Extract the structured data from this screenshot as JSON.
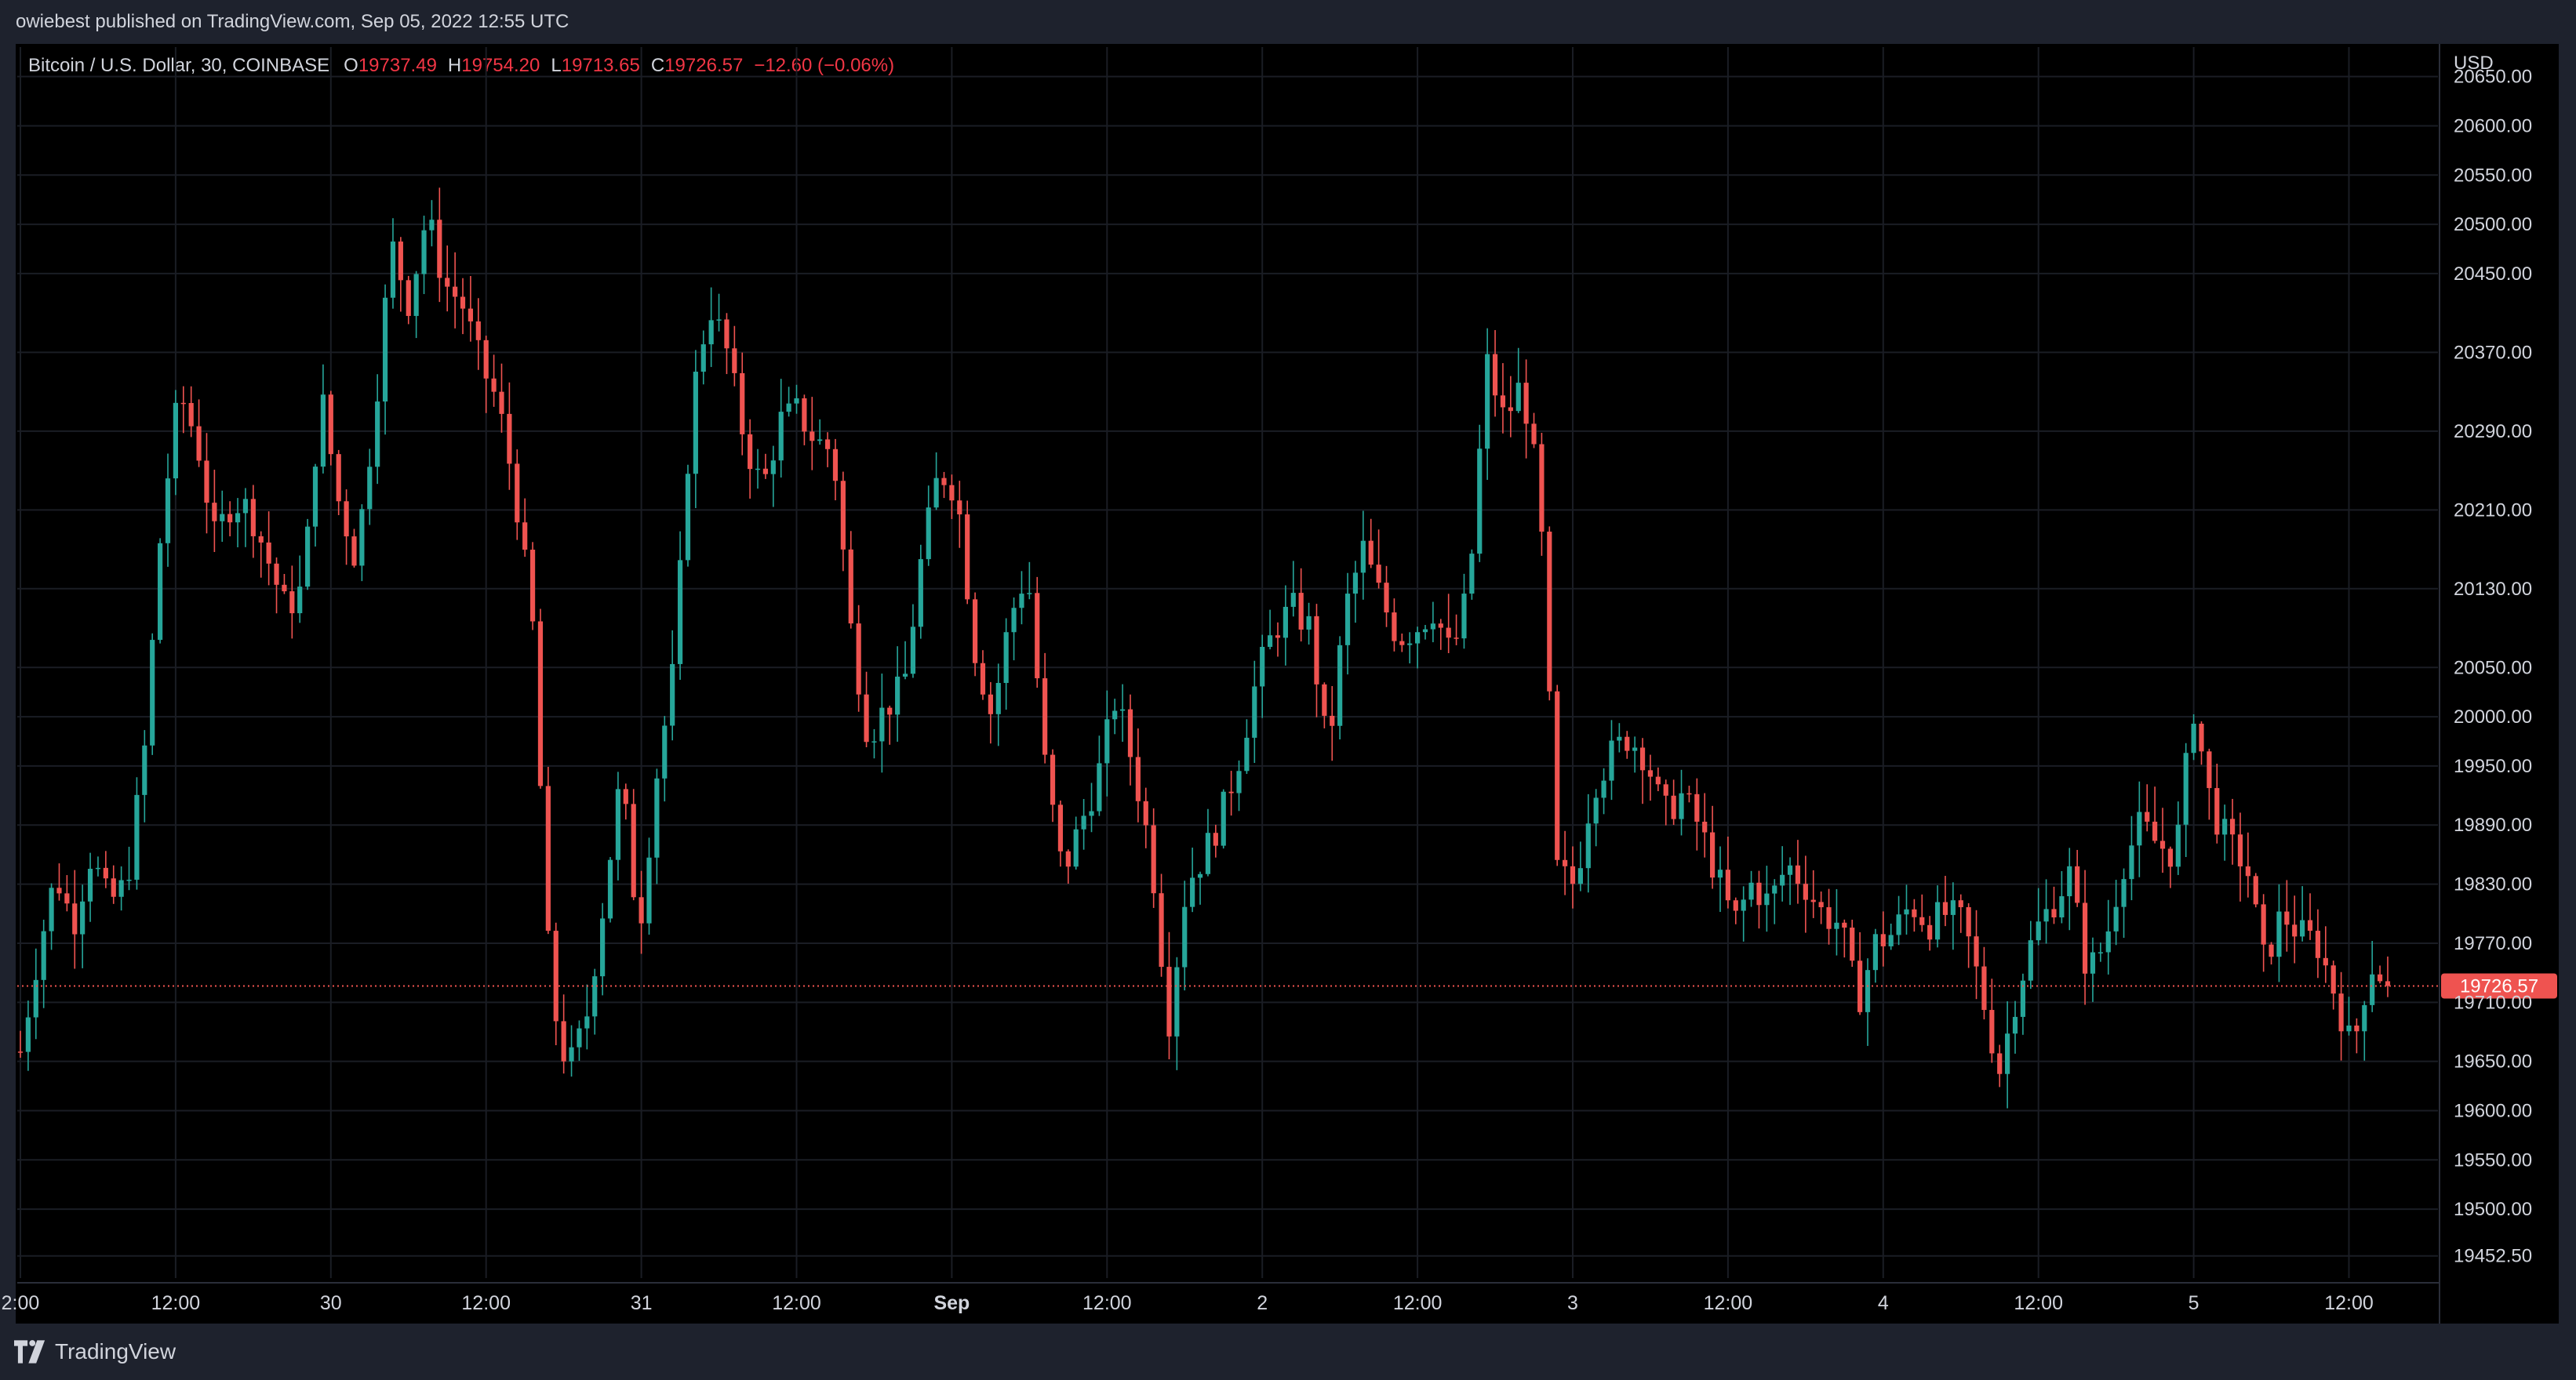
{
  "header": {
    "published": "owiebest published on TradingView.com, Sep 05, 2022 12:55 UTC"
  },
  "legend": {
    "symbol": "Bitcoin / U.S. Dollar, 30, COINBASE",
    "o_label": "O",
    "o_value": "19737.49",
    "h_label": "H",
    "h_value": "19754.20",
    "l_label": "L",
    "l_value": "19713.65",
    "c_label": "C",
    "c_value": "19726.57",
    "change": "−12.60 (−0.06%)"
  },
  "footer": {
    "brand": "TradingView"
  },
  "colors": {
    "up": "#26a69a",
    "down": "#ef5350",
    "background": "#000000",
    "frame": "#1e222d",
    "grid": "#1a1d24",
    "text": "#d1d4dc",
    "price_tag": "#ef5350"
  },
  "chart_data": {
    "type": "candlestick",
    "symbol": "Bitcoin / U.S. Dollar",
    "interval": "30",
    "exchange": "COINBASE",
    "currency": "USD",
    "last_price": 19726.57,
    "last_price_label": "19726.57",
    "ylim": [
      19430,
      20680
    ],
    "y_ticks": [
      {
        "value": 20650,
        "label": "20650.00"
      },
      {
        "value": 20600,
        "label": "20600.00"
      },
      {
        "value": 20550,
        "label": "20550.00"
      },
      {
        "value": 20500,
        "label": "20500.00"
      },
      {
        "value": 20450,
        "label": "20450.00"
      },
      {
        "value": 20370,
        "label": "20370.00"
      },
      {
        "value": 20290,
        "label": "20290.00"
      },
      {
        "value": 20210,
        "label": "20210.00"
      },
      {
        "value": 20130,
        "label": "20130.00"
      },
      {
        "value": 20050,
        "label": "20050.00"
      },
      {
        "value": 20000,
        "label": "20000.00"
      },
      {
        "value": 19950,
        "label": "19950.00"
      },
      {
        "value": 19890,
        "label": "19890.00"
      },
      {
        "value": 19830,
        "label": "19830.00"
      },
      {
        "value": 19770,
        "label": "19770.00"
      },
      {
        "value": 19710,
        "label": "19710.00"
      },
      {
        "value": 19650,
        "label": "19650.00"
      },
      {
        "value": 19600,
        "label": "19600.00"
      },
      {
        "value": 19550,
        "label": "19550.00"
      },
      {
        "value": 19500,
        "label": "19500.00"
      },
      {
        "value": 19452.5,
        "label": "19452.50"
      }
    ],
    "x_ticks": [
      {
        "bar": 0,
        "label": "2:00",
        "bold": false
      },
      {
        "bar": 20,
        "label": "12:00",
        "bold": false
      },
      {
        "bar": 40,
        "label": "30",
        "bold": false
      },
      {
        "bar": 60,
        "label": "12:00",
        "bold": false
      },
      {
        "bar": 80,
        "label": "31",
        "bold": false
      },
      {
        "bar": 100,
        "label": "12:00",
        "bold": false
      },
      {
        "bar": 120,
        "label": "Sep",
        "bold": true
      },
      {
        "bar": 140,
        "label": "12:00",
        "bold": false
      },
      {
        "bar": 160,
        "label": "2",
        "bold": false
      },
      {
        "bar": 180,
        "label": "12:00",
        "bold": false
      },
      {
        "bar": 200,
        "label": "3",
        "bold": false
      },
      {
        "bar": 220,
        "label": "12:00",
        "bold": false
      },
      {
        "bar": 240,
        "label": "4",
        "bold": false
      },
      {
        "bar": 260,
        "label": "12:00",
        "bold": false
      },
      {
        "bar": 280,
        "label": "5",
        "bold": false
      },
      {
        "bar": 300,
        "label": "12:00",
        "bold": false
      }
    ],
    "close_path": [
      19660,
      19760,
      19840,
      19790,
      19860,
      19810,
      19830,
      19960,
      20200,
      20330,
      20280,
      20180,
      20220,
      20210,
      20160,
      20110,
      20130,
      20330,
      20220,
      20160,
      20300,
      20480,
      20420,
      20510,
      20440,
      20420,
      20360,
      20320,
      20230,
      20090,
      19720,
      19640,
      19690,
      19810,
      19940,
      19780,
      19940,
      20050,
      20320,
      20420,
      20370,
      20280,
      20230,
      20300,
      20310,
      20280,
      20270,
      20090,
      19980,
      20010,
      20030,
      20160,
      20250,
      20230,
      20070,
      20000,
      20100,
      20150,
      19950,
      19840,
      19890,
      19940,
      20020,
      19950,
      19860,
      19690,
      19830,
      19860,
      19900,
      19960,
      20040,
      20090,
      20110,
      20090,
      19960,
      20110,
      20170,
      20120,
      20080,
      20090,
      20110,
      20060,
      20130,
      20360,
      20300,
      20340,
      20220,
      19840,
      19830,
      19930,
      19960,
      19980,
      19960,
      19900,
      19920,
      19890,
      19840,
      19790,
      19830,
      19810,
      19850,
      19830,
      19800,
      19790,
      19710,
      19770,
      19780,
      19810,
      19790,
      19800,
      19790,
      19720,
      19640,
      19720,
      19780,
      19810,
      19840,
      19740,
      19770,
      19850,
      19890,
      19870,
      19860,
      20010,
      19910,
      19870,
      19850,
      19750,
      19800,
      19780,
      19770,
      19720,
      19660,
      19750,
      19730
    ],
    "bars": 306
  }
}
